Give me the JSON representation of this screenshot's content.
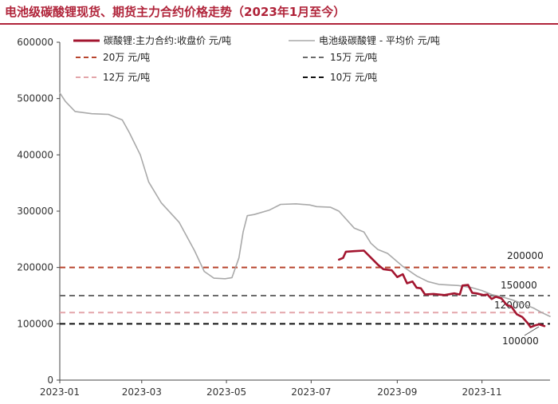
{
  "title": "电池级碳酸锂现货、期货主力合约价格走势（2023年1月至今）",
  "chart_data": {
    "type": "line",
    "ylim": [
      0,
      600000
    ],
    "yticks": [
      0,
      100000,
      200000,
      300000,
      400000,
      500000,
      600000
    ],
    "xlim": [
      "2023-01-01",
      "2023-12-20"
    ],
    "xticks": [
      "2023-01",
      "2023-03",
      "2023-05",
      "2023-07",
      "2023-09",
      "2023-11"
    ],
    "grid": false,
    "legend_position": "top",
    "series": [
      {
        "name": "碳酸锂:主力合约:收盘价 元/吨",
        "color": "#a3152f",
        "points": [
          [
            "2023-07-21",
            214000
          ],
          [
            "2023-07-24",
            217000
          ],
          [
            "2023-07-26",
            228000
          ],
          [
            "2023-08-01",
            229000
          ],
          [
            "2023-08-08",
            230000
          ],
          [
            "2023-08-14",
            215000
          ],
          [
            "2023-08-18",
            205000
          ],
          [
            "2023-08-22",
            197000
          ],
          [
            "2023-08-28",
            195000
          ],
          [
            "2023-09-01",
            183000
          ],
          [
            "2023-09-05",
            188000
          ],
          [
            "2023-09-08",
            172000
          ],
          [
            "2023-09-12",
            175000
          ],
          [
            "2023-09-15",
            164000
          ],
          [
            "2023-09-18",
            163000
          ],
          [
            "2023-09-21",
            152000
          ],
          [
            "2023-09-27",
            153000
          ],
          [
            "2023-10-05",
            151000
          ],
          [
            "2023-10-12",
            154000
          ],
          [
            "2023-10-16",
            152000
          ],
          [
            "2023-10-18",
            168000
          ],
          [
            "2023-10-22",
            169000
          ],
          [
            "2023-10-25",
            155000
          ],
          [
            "2023-10-28",
            154000
          ],
          [
            "2023-11-02",
            151000
          ],
          [
            "2023-11-05",
            152000
          ],
          [
            "2023-11-08",
            144000
          ],
          [
            "2023-11-11",
            148000
          ],
          [
            "2023-11-15",
            145000
          ],
          [
            "2023-11-19",
            133000
          ],
          [
            "2023-11-22",
            131000
          ],
          [
            "2023-11-26",
            117000
          ],
          [
            "2023-11-30",
            112000
          ],
          [
            "2023-12-04",
            101000
          ],
          [
            "2023-12-06",
            94000
          ],
          [
            "2023-12-09",
            97000
          ],
          [
            "2023-12-12",
            99000
          ],
          [
            "2023-12-16",
            96000
          ]
        ]
      },
      {
        "name": "电池级碳酸锂 - 平均价 元/吨",
        "color": "#a9a9a9",
        "points": [
          [
            "2023-01-01",
            510000
          ],
          [
            "2023-01-05",
            495000
          ],
          [
            "2023-01-12",
            477000
          ],
          [
            "2023-01-24",
            473000
          ],
          [
            "2023-02-05",
            472000
          ],
          [
            "2023-02-15",
            462000
          ],
          [
            "2023-02-20",
            440000
          ],
          [
            "2023-02-28",
            400000
          ],
          [
            "2023-03-06",
            352000
          ],
          [
            "2023-03-15",
            315000
          ],
          [
            "2023-03-28",
            280000
          ],
          [
            "2023-04-08",
            230000
          ],
          [
            "2023-04-15",
            193000
          ],
          [
            "2023-04-22",
            181000
          ],
          [
            "2023-04-30",
            180000
          ],
          [
            "2023-05-05",
            182000
          ],
          [
            "2023-05-10",
            217000
          ],
          [
            "2023-05-13",
            263000
          ],
          [
            "2023-05-16",
            292000
          ],
          [
            "2023-05-21",
            294000
          ],
          [
            "2023-06-01",
            302000
          ],
          [
            "2023-06-09",
            312000
          ],
          [
            "2023-06-20",
            313000
          ],
          [
            "2023-06-30",
            311000
          ],
          [
            "2023-07-05",
            308000
          ],
          [
            "2023-07-15",
            307000
          ],
          [
            "2023-07-21",
            300000
          ],
          [
            "2023-08-01",
            270000
          ],
          [
            "2023-08-08",
            263000
          ],
          [
            "2023-08-13",
            243000
          ],
          [
            "2023-08-18",
            232000
          ],
          [
            "2023-08-25",
            225000
          ],
          [
            "2023-09-05",
            202000
          ],
          [
            "2023-09-15",
            185000
          ],
          [
            "2023-09-23",
            175000
          ],
          [
            "2023-10-01",
            170000
          ],
          [
            "2023-10-15",
            168000
          ],
          [
            "2023-10-25",
            164000
          ],
          [
            "2023-11-01",
            159000
          ],
          [
            "2023-11-08",
            152000
          ],
          [
            "2023-11-15",
            148000
          ],
          [
            "2023-11-22",
            143000
          ],
          [
            "2023-11-30",
            136000
          ],
          [
            "2023-12-08",
            128000
          ],
          [
            "2023-12-14",
            120000
          ],
          [
            "2023-12-20",
            113000
          ]
        ]
      }
    ],
    "reference_lines": [
      {
        "name": "20万 元/吨",
        "value": 200000,
        "color": "#b8452e",
        "label": "200000"
      },
      {
        "name": "15万 元/吨",
        "value": 150000,
        "color": "#6b6b6b",
        "label": "150000"
      },
      {
        "name": "12万 元/吨",
        "value": 120000,
        "color": "#e3a5aa",
        "label": "120000"
      },
      {
        "name": "10万 元/吨",
        "value": 100000,
        "color": "#111111",
        "label": "100000"
      }
    ]
  }
}
